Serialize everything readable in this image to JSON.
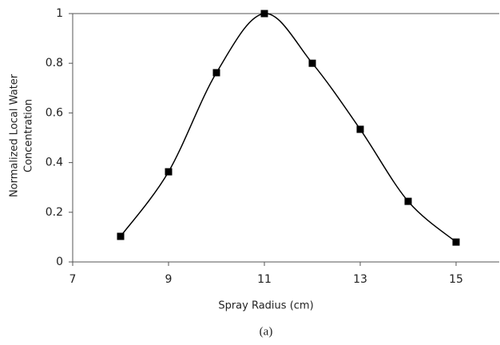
{
  "chart_data": {
    "type": "line",
    "xlabel": "Spray Radius (cm)",
    "ylabel": [
      "Normalized Local Water",
      "Concentration"
    ],
    "caption": "(a)",
    "x": [
      8,
      9,
      10,
      11,
      12,
      13,
      14,
      15
    ],
    "series": [
      {
        "color": "#000000",
        "values": [
          0.103,
          0.363,
          0.762,
          1.0,
          0.8,
          0.534,
          0.244,
          0.08
        ]
      }
    ],
    "xlim": [
      7,
      15.9
    ],
    "xticks": [
      7,
      9,
      11,
      13,
      15
    ],
    "ylim": [
      0,
      1
    ],
    "yticks": [
      0,
      0.2,
      0.4,
      0.6,
      0.8,
      1
    ],
    "smooth": true,
    "marker": "square"
  }
}
